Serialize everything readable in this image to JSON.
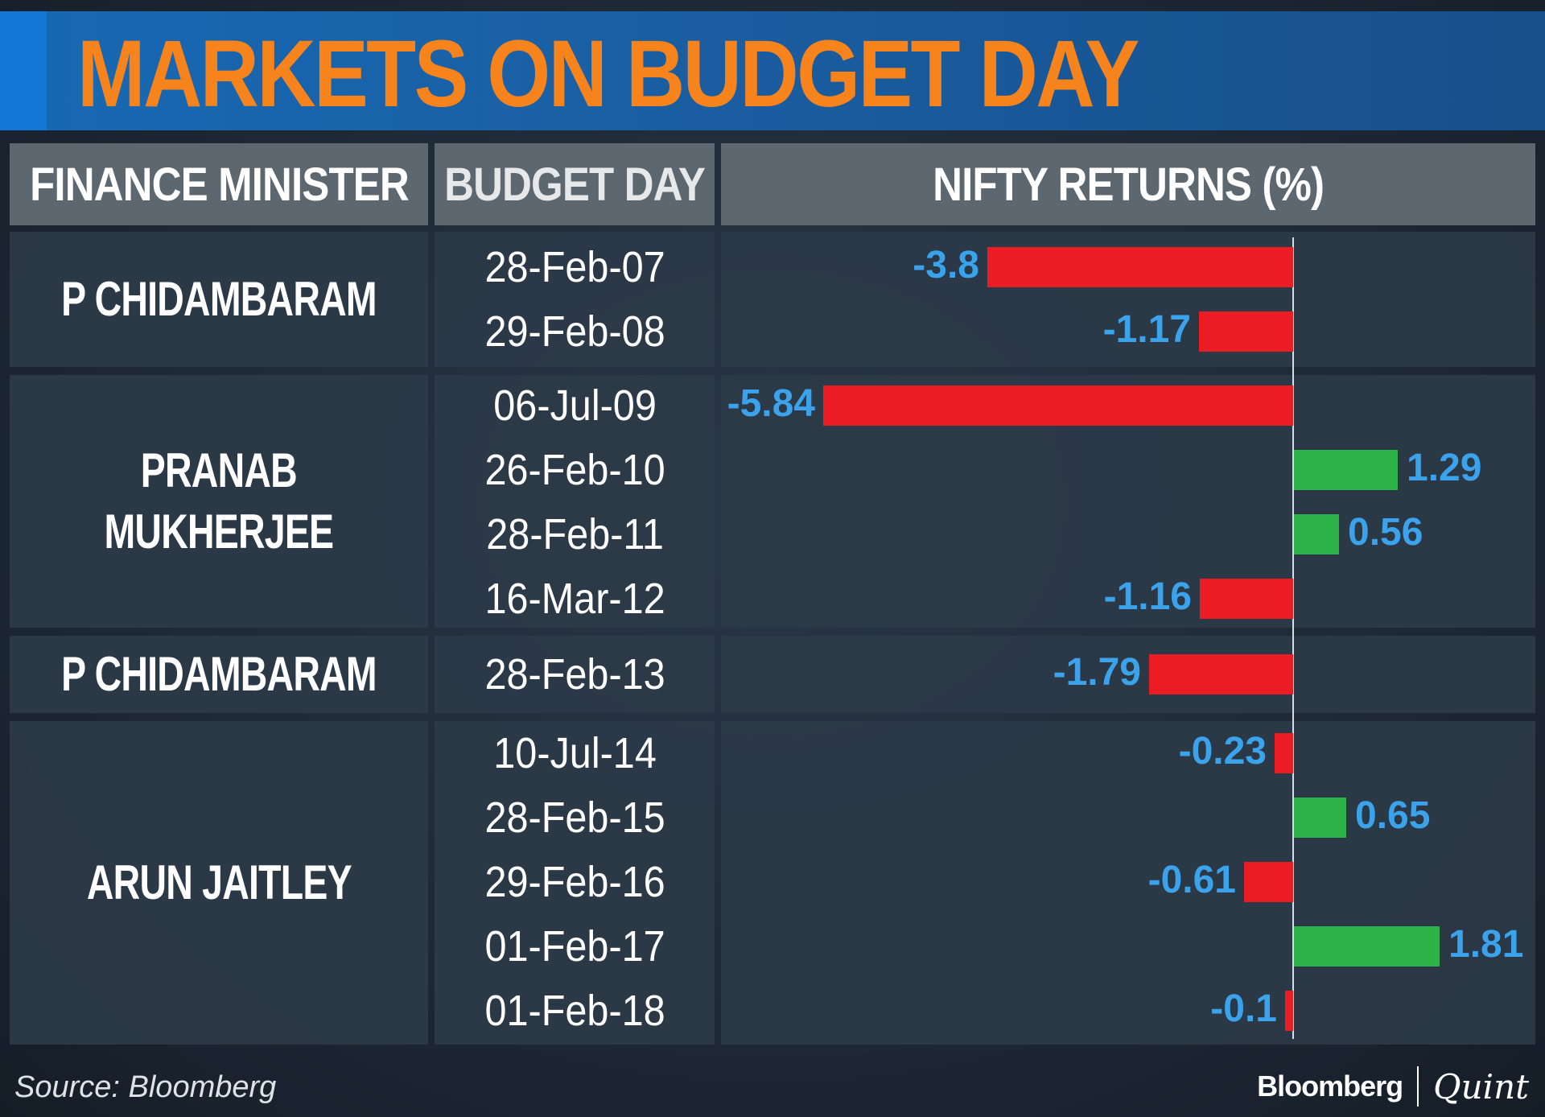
{
  "title": "MARKETS ON BUDGET DAY",
  "headers": {
    "minister": "FINANCE MINISTER",
    "day": "BUDGET DAY",
    "returns": "NIFTY RETURNS (%)"
  },
  "groups": [
    {
      "minister_lines": [
        "P CHIDAMBARAM"
      ]
    },
    {
      "minister_lines": [
        "PRANAB",
        "MUKHERJEE"
      ]
    },
    {
      "minister_lines": [
        "P CHIDAMBARAM"
      ]
    },
    {
      "minister_lines": [
        "ARUN JAITLEY"
      ]
    }
  ],
  "chart_data": {
    "type": "bar",
    "orientation": "horizontal",
    "title": "NIFTY RETURNS (%)",
    "categories": [
      "28-Feb-07",
      "29-Feb-08",
      "06-Jul-09",
      "26-Feb-10",
      "28-Feb-11",
      "16-Mar-12",
      "28-Feb-13",
      "10-Jul-14",
      "28-Feb-15",
      "29-Feb-16",
      "01-Feb-17",
      "01-Feb-18"
    ],
    "values": [
      -3.8,
      -1.17,
      -5.84,
      1.29,
      0.56,
      -1.16,
      -1.79,
      -0.23,
      0.65,
      -0.61,
      1.81,
      -0.1
    ],
    "value_labels": [
      "-3.8",
      "-1.17",
      "-5.84",
      "1.29",
      "0.56",
      "-1.16",
      "-1.79",
      "-0.23",
      "0.65",
      "-0.61",
      "1.81",
      "-0.1"
    ],
    "grid": false,
    "colors": {
      "negative": "#ec1c24",
      "positive": "#2db34a",
      "label": "#3aa3ec"
    }
  },
  "footer": {
    "source": "Source: Bloomberg",
    "brand_left": "Bloomberg",
    "brand_right": "Quint"
  }
}
